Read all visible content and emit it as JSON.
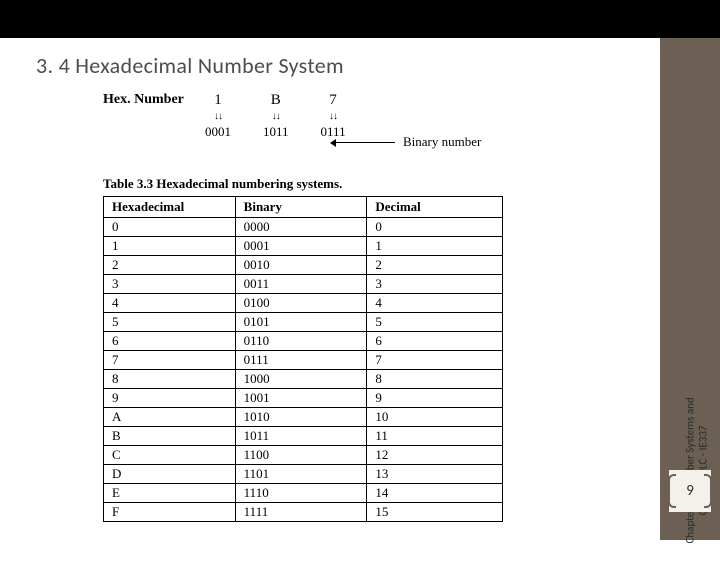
{
  "slide": {
    "title": "3. 4 Hexadecimal Number System",
    "page_number": "9"
  },
  "side_label": {
    "line1": "Chapter 3 : Number Systems and",
    "line2": "Codes in PLC - IE337"
  },
  "hex_example": {
    "label": "Hex. Number",
    "digits": [
      "1",
      "B",
      "7"
    ],
    "binaries": [
      "0001",
      "1011",
      "0111"
    ],
    "arrow_label": "Binary number"
  },
  "table": {
    "caption": "Table 3.3 Hexadecimal numbering systems.",
    "headers": [
      "Hexadecimal",
      "Binary",
      "Decimal"
    ],
    "rows": [
      [
        "0",
        "0000",
        "0"
      ],
      [
        "1",
        "0001",
        "1"
      ],
      [
        "2",
        "0010",
        "2"
      ],
      [
        "3",
        "0011",
        "3"
      ],
      [
        "4",
        "0100",
        "4"
      ],
      [
        "5",
        "0101",
        "5"
      ],
      [
        "6",
        "0110",
        "6"
      ],
      [
        "7",
        "0111",
        "7"
      ],
      [
        "8",
        "1000",
        "8"
      ],
      [
        "9",
        "1001",
        "9"
      ],
      [
        "A",
        "1010",
        "10"
      ],
      [
        "B",
        "1011",
        "11"
      ],
      [
        "C",
        "1100",
        "12"
      ],
      [
        "D",
        "1101",
        "13"
      ],
      [
        "E",
        "1110",
        "14"
      ],
      [
        "F",
        "1111",
        "15"
      ]
    ]
  },
  "colors": {
    "top_bar": "#000000",
    "right_col": "#6b6053",
    "badge_bg": "#f4f1eb",
    "title_color": "#4d4d4d"
  }
}
